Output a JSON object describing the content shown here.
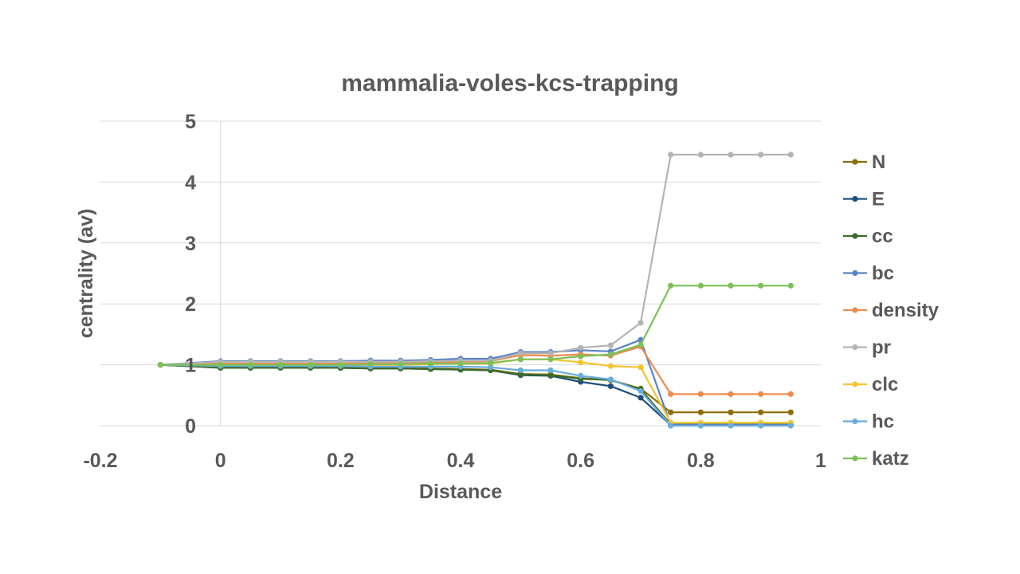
{
  "chart_data": {
    "type": "line",
    "title": "mammalia-voles-kcs-trapping",
    "xlabel": "Distance",
    "ylabel": "centrality (av)",
    "xlim": [
      -0.2,
      1
    ],
    "ylim": [
      0,
      5
    ],
    "x_ticks": [
      "-0.2",
      "0",
      "0.2",
      "0.4",
      "0.6",
      "0.8",
      "1"
    ],
    "y_ticks": [
      "0",
      "1",
      "2",
      "3",
      "4",
      "5"
    ],
    "grid": "horizontal",
    "legend_position": "right",
    "x": [
      -0.1,
      0,
      0.05,
      0.1,
      0.15,
      0.2,
      0.25,
      0.3,
      0.35,
      0.4,
      0.45,
      0.5,
      0.55,
      0.6,
      0.65,
      0.7,
      0.75,
      0.8,
      0.85,
      0.9,
      0.95
    ],
    "series": [
      {
        "name": "N",
        "color": "#8c6d00",
        "values": [
          1,
          0.97,
          0.97,
          0.97,
          0.97,
          0.96,
          0.95,
          0.95,
          0.94,
          0.93,
          0.92,
          0.85,
          0.84,
          0.78,
          0.75,
          0.61,
          0.22,
          0.22,
          0.22,
          0.22,
          0.22
        ]
      },
      {
        "name": "E",
        "color": "#1f4e79",
        "values": [
          1,
          0.96,
          0.96,
          0.96,
          0.96,
          0.95,
          0.94,
          0.94,
          0.93,
          0.92,
          0.91,
          0.83,
          0.82,
          0.72,
          0.65,
          0.46,
          0.01,
          0.01,
          0.01,
          0.01,
          0.01
        ]
      },
      {
        "name": "cc",
        "color": "#3d6b2a",
        "values": [
          1,
          0.95,
          0.95,
          0.95,
          0.95,
          0.95,
          0.94,
          0.94,
          0.93,
          0.92,
          0.91,
          0.84,
          0.83,
          0.77,
          0.75,
          0.6,
          0.02,
          0.02,
          0.02,
          0.02,
          0.02
        ]
      },
      {
        "name": "bc",
        "color": "#5b83c6",
        "values": [
          1,
          1.06,
          1.06,
          1.06,
          1.06,
          1.06,
          1.07,
          1.07,
          1.08,
          1.1,
          1.1,
          1.21,
          1.21,
          1.24,
          1.22,
          1.41,
          0.01,
          0.01,
          0.01,
          0.01,
          0.01
        ]
      },
      {
        "name": "density",
        "color": "#ed8b4f",
        "values": [
          1,
          1.02,
          1.02,
          1.02,
          1.02,
          1.02,
          1.03,
          1.03,
          1.04,
          1.05,
          1.06,
          1.16,
          1.15,
          1.17,
          1.15,
          1.3,
          0.52,
          0.52,
          0.52,
          0.52,
          0.52
        ]
      },
      {
        "name": "pr",
        "color": "#b4b4b4",
        "values": [
          1,
          1.05,
          1.05,
          1.05,
          1.05,
          1.05,
          1.05,
          1.05,
          1.06,
          1.07,
          1.07,
          1.19,
          1.19,
          1.28,
          1.32,
          1.69,
          4.45,
          4.45,
          4.45,
          4.45,
          4.45
        ]
      },
      {
        "name": "clc",
        "color": "#f5c431",
        "values": [
          1,
          1.0,
          1.0,
          1.0,
          1.0,
          1.0,
          1.0,
          1.0,
          1.01,
          1.02,
          1.02,
          1.09,
          1.09,
          1.04,
          0.98,
          0.96,
          0.05,
          0.05,
          0.05,
          0.05,
          0.05
        ]
      },
      {
        "name": "hc",
        "color": "#6aaddc",
        "values": [
          1,
          0.98,
          0.98,
          0.98,
          0.98,
          0.98,
          0.97,
          0.97,
          0.97,
          0.97,
          0.96,
          0.91,
          0.91,
          0.82,
          0.76,
          0.57,
          0.0,
          0.0,
          0.0,
          0.0,
          0.0
        ]
      },
      {
        "name": "katz",
        "color": "#7cc05a",
        "values": [
          1,
          1.0,
          1.0,
          1.0,
          1.0,
          1.0,
          1.01,
          1.01,
          1.02,
          1.02,
          1.03,
          1.09,
          1.09,
          1.14,
          1.17,
          1.33,
          2.3,
          2.3,
          2.3,
          2.3,
          2.3
        ]
      }
    ]
  }
}
